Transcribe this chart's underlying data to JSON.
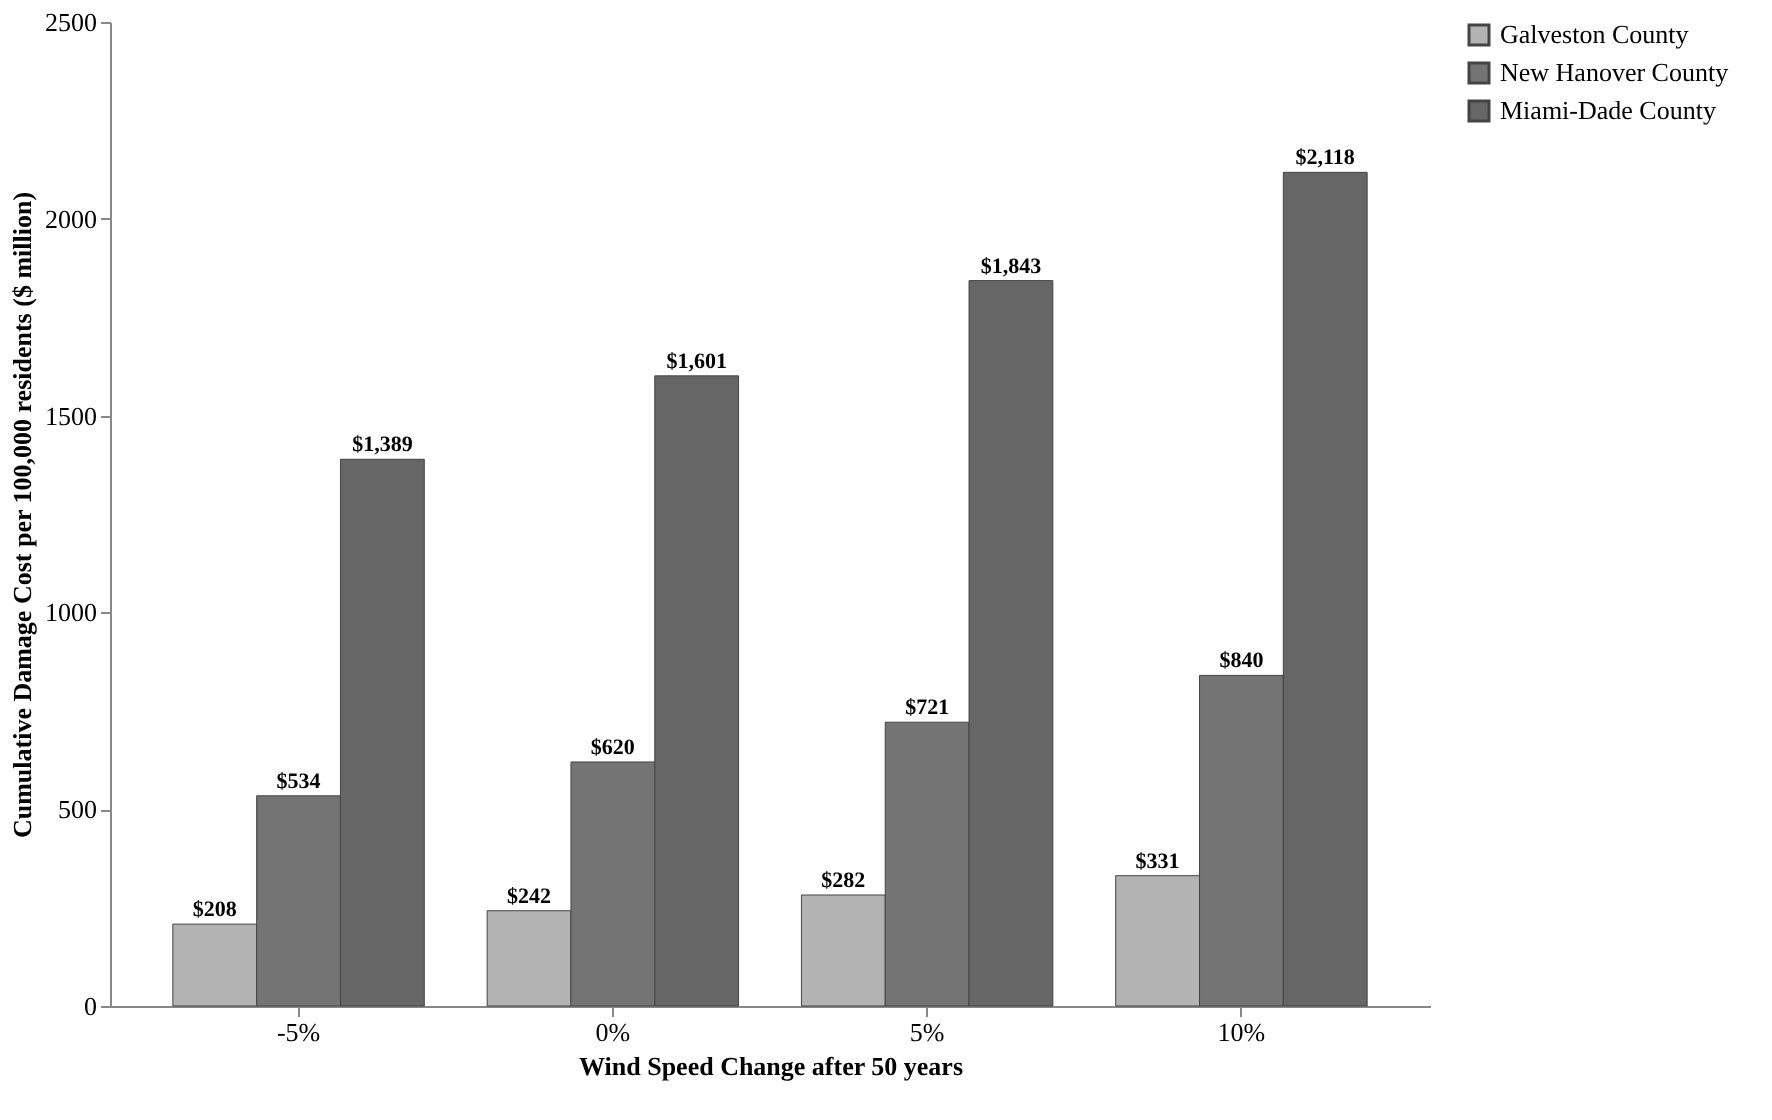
{
  "chart_data": {
    "type": "bar",
    "xlabel": "Wind Speed Change after 50 years",
    "ylabel": "Cumulative Damage Cost per 100,000 residents  ($ million)",
    "categories": [
      "-5%",
      "0%",
      "5%",
      "10%"
    ],
    "series": [
      {
        "name": "Galveston County",
        "color": "#b3b3b3",
        "values": [
          208,
          242,
          282,
          331
        ],
        "value_labels": [
          "$208",
          "$242",
          "$282",
          "$331"
        ]
      },
      {
        "name": "New Hanover County",
        "color": "#747474",
        "values": [
          534,
          620,
          721,
          840
        ],
        "value_labels": [
          "$534",
          "$620",
          "$721",
          "$840"
        ]
      },
      {
        "name": "Miami-Dade County",
        "color": "#666666",
        "values": [
          1389,
          1601,
          1843,
          2118
        ],
        "value_labels": [
          "$1,389",
          "$1,601",
          "$1,843",
          "$2,118"
        ]
      }
    ],
    "ylim": [
      0,
      2500
    ],
    "yticks": [
      0,
      500,
      1000,
      1500,
      2000,
      2500
    ],
    "grid": false,
    "legend": "right"
  }
}
